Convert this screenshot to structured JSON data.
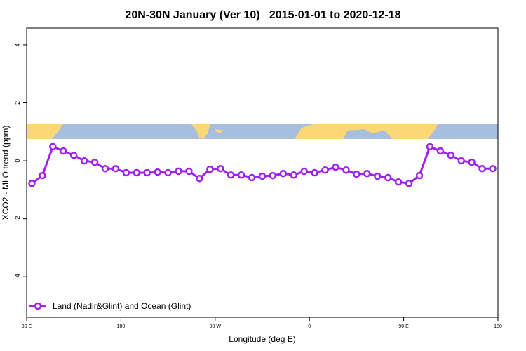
{
  "chart_data": {
    "type": "line",
    "title": "20N-30N January (Ver 10)   2015-01-01 to 2020-12-18",
    "x_label": "Longitude (deg E)",
    "y_label": "XCO2 - MLO trend (ppm)",
    "x": [
      95,
      105,
      115,
      125,
      135,
      145,
      155,
      165,
      175,
      185,
      195,
      205,
      215,
      225,
      235,
      245,
      255,
      265,
      275,
      285,
      295,
      305,
      315,
      325,
      335,
      345,
      355,
      365,
      375,
      385,
      395,
      405,
      415,
      425,
      435,
      445,
      455,
      465,
      475,
      485,
      495,
      505,
      515,
      525,
      535
    ],
    "series": [
      {
        "name": "Land (Nadir&Glint) and Ocean (Glint)",
        "color": "#a020f0",
        "values": [
          -0.78,
          -0.51,
          0.49,
          0.34,
          0.19,
          0.0,
          -0.05,
          -0.27,
          -0.27,
          -0.41,
          -0.41,
          -0.41,
          -0.39,
          -0.41,
          -0.36,
          -0.36,
          -0.61,
          -0.29,
          -0.27,
          -0.49,
          -0.49,
          -0.58,
          -0.53,
          -0.51,
          -0.44,
          -0.49,
          -0.36,
          -0.41,
          -0.32,
          -0.22,
          -0.32,
          -0.46,
          -0.44,
          -0.53,
          -0.58,
          -0.73,
          -0.78,
          -0.51,
          0.49,
          0.34,
          0.19,
          0.0,
          -0.05,
          -0.27,
          -0.27
        ]
      }
    ],
    "xlim": [
      90,
      540
    ],
    "xticks": [
      {
        "value": 90,
        "label": "90 E"
      },
      180,
      {
        "value": 270,
        "label": "90 W"
      },
      {
        "value": 360,
        "label": "0"
      },
      {
        "value": 450,
        "label": "90 E"
      },
      {
        "value": 540,
        "label": "180"
      }
    ],
    "ylim": [
      -5.4,
      4.58
    ],
    "yticks": [
      -4,
      -2,
      0,
      2,
      4
    ],
    "legend": "bottom-left"
  }
}
